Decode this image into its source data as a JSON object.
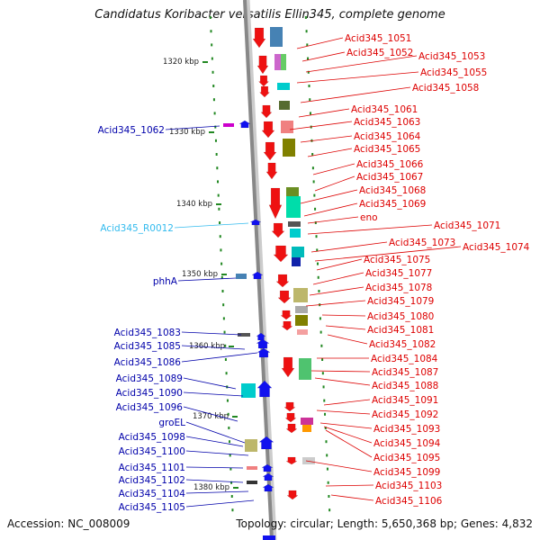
{
  "title": "Candidatus Koribacter versatilis Ellin345, complete genome",
  "footer": {
    "accession": "Accession: NC_008009",
    "summary": "Topology: circular; Length: 5,650,368 bp; Genes: 4,832"
  },
  "colors": {
    "forward_gene": "#ee1111",
    "reverse_gene": "#1111ee",
    "forward_label": "#dd0000",
    "reverse_label": "#0000aa",
    "rna_label": "#33bbee",
    "backbone": "#888888",
    "tick": "#228822"
  },
  "ruler": [
    "1320 kbp",
    "1330 kbp",
    "1340 kbp",
    "1350 kbp",
    "1360 kbp",
    "1370 kbp",
    "1380 kbp"
  ],
  "right_labels": [
    "Acid345_1051",
    "Acid345_1052",
    "Acid345_1053",
    "Acid345_1055",
    "Acid345_1058",
    "Acid345_1061",
    "Acid345_1063",
    "Acid345_1064",
    "Acid345_1065",
    "Acid345_1066",
    "Acid345_1067",
    "Acid345_1068",
    "Acid345_1069",
    "eno",
    "Acid345_1071",
    "Acid345_1073",
    "Acid345_1074",
    "Acid345_1075",
    "Acid345_1077",
    "Acid345_1078",
    "Acid345_1079",
    "Acid345_1080",
    "Acid345_1081",
    "Acid345_1082",
    "Acid345_1084",
    "Acid345_1087",
    "Acid345_1088",
    "Acid345_1091",
    "Acid345_1092",
    "Acid345_1093",
    "Acid345_1094",
    "Acid345_1095",
    "Acid345_1099",
    "Acid345_1103",
    "Acid345_1106"
  ],
  "left_labels": [
    {
      "text": "Acid345_1062",
      "type": "gene"
    },
    {
      "text": "Acid345_R0012",
      "type": "rna"
    },
    {
      "text": "phhA",
      "type": "gene"
    },
    {
      "text": "Acid345_1083",
      "type": "gene"
    },
    {
      "text": "Acid345_1085",
      "type": "gene"
    },
    {
      "text": "Acid345_1086",
      "type": "gene"
    },
    {
      "text": "Acid345_1089",
      "type": "gene"
    },
    {
      "text": "Acid345_1090",
      "type": "gene"
    },
    {
      "text": "Acid345_1096",
      "type": "gene"
    },
    {
      "text": "groEL",
      "type": "gene"
    },
    {
      "text": "Acid345_1098",
      "type": "gene"
    },
    {
      "text": "Acid345_1100",
      "type": "gene"
    },
    {
      "text": "Acid345_1101",
      "type": "gene"
    },
    {
      "text": "Acid345_1102",
      "type": "gene"
    },
    {
      "text": "Acid345_1104",
      "type": "gene"
    },
    {
      "text": "Acid345_1105",
      "type": "gene"
    }
  ]
}
